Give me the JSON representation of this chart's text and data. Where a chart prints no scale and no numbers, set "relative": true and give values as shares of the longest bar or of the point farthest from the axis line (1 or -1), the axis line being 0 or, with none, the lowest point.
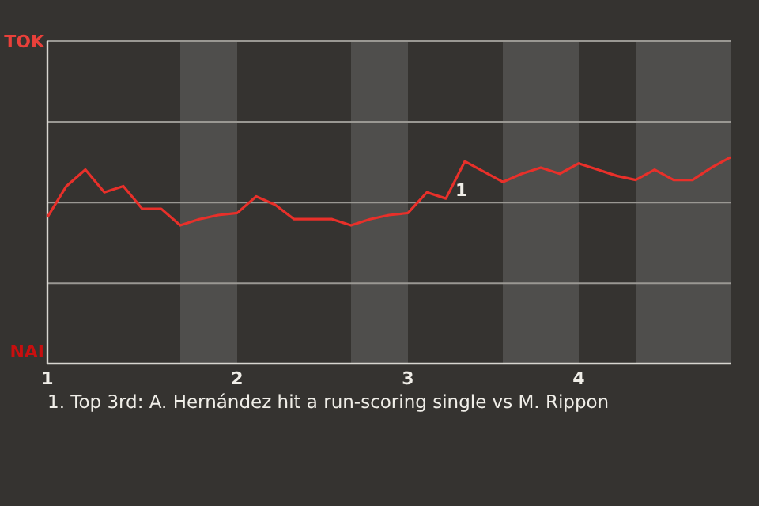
{
  "chart_data": {
    "type": "line",
    "relative": true,
    "categories": [
      "1",
      null,
      null,
      null,
      null,
      null,
      null,
      null,
      null,
      null,
      "2",
      null,
      null,
      null,
      null,
      null,
      null,
      null,
      null,
      "3",
      null,
      null,
      null,
      null,
      null,
      null,
      null,
      null,
      "4",
      null,
      null,
      null,
      null,
      null,
      null,
      null,
      null
    ],
    "series": [
      {
        "color": "#e8302a",
        "values": [
          0.71,
          0.86,
          0.94,
          0.83,
          0.86,
          0.75,
          0.75,
          0.67,
          0.7,
          0.72,
          0.73,
          0.81,
          0.77,
          0.7,
          0.7,
          0.7,
          0.67,
          0.7,
          0.72,
          0.73,
          0.83,
          0.8,
          0.98,
          0.93,
          0.88,
          0.92,
          0.95,
          0.92,
          0.97,
          0.94,
          0.91,
          0.89,
          0.94,
          0.89,
          0.89,
          0.95,
          1
        ]
      }
    ],
    "ref_lines": [
      {
        "axis": "y",
        "value": 0.78,
        "color": "#9a9893"
      },
      {
        "axis": "y",
        "value": 0.39,
        "color": "#9a9893"
      }
    ],
    "marker": "none",
    "line_style": "solid",
    "annotations": [
      "TOK",
      "NAI",
      {
        "text": "1",
        "y": 0.98
      },
      "1. Top 3rd: A. Hernández hit a run-scoring single vs M. Rippon"
    ]
  }
}
